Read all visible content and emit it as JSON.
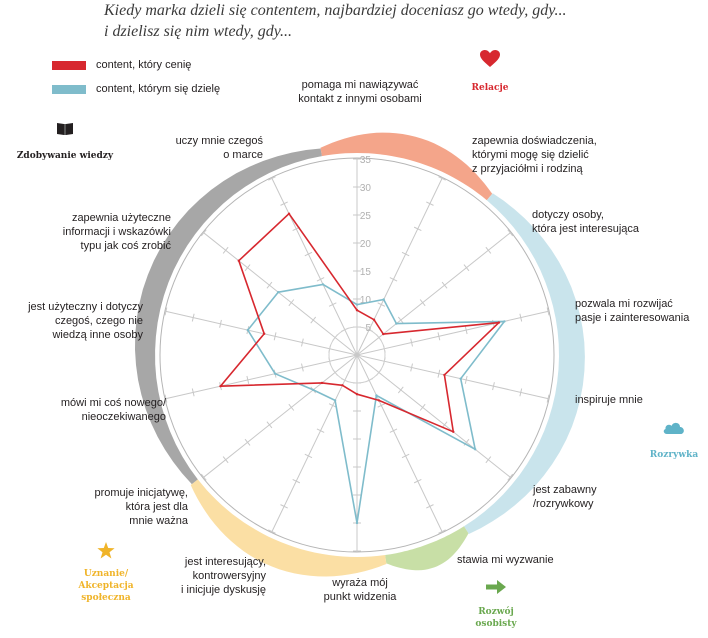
{
  "title": {
    "line1": "Kiedy marka dzieli się contentem, najbardziej doceniasz go wtedy, gdy...",
    "line2": "i dzielisz się nim wtedy, gdy..."
  },
  "legend": [
    {
      "label": "content, który cenię",
      "color": "#d7282f"
    },
    {
      "label": "content, którym się dzielę",
      "color": "#7fbccb"
    }
  ],
  "categories": {
    "relacje": {
      "label": "Relacje",
      "color": "#d7282f",
      "icon": "heart-icon"
    },
    "wiedza": {
      "label": "Zdobywanie wiedzy",
      "color": "#231f20",
      "icon": "book-icon"
    },
    "rozrywka": {
      "label": "Rozrywka",
      "color": "#5fb3c8",
      "icon": "cloud-icon"
    },
    "rozwoj": {
      "label_lines": [
        "Rozwój",
        "osobisty"
      ],
      "color": "#6aa84f",
      "icon": "arrow-right-icon"
    },
    "uznanie": {
      "label_lines": [
        "Uznanie/",
        "Akceptacja",
        "społeczna"
      ],
      "color": "#f0b429",
      "icon": "star-icon"
    }
  },
  "chart_data": {
    "type": "radar",
    "title": "Kiedy marka dzieli się contentem, najbardziej doceniasz go wtedy, gdy... i dzielisz się nim wtedy, gdy...",
    "rlim": [
      0,
      35
    ],
    "ticks": [
      5,
      10,
      15,
      20,
      25,
      30,
      35
    ],
    "axes": [
      [
        "pomaga mi nawiązywać",
        "kontakt z innymi osobami"
      ],
      [
        "zapewnia doświadczenia,",
        "którymi mogę się dzielić",
        "z przyjaciółmi i rodziną"
      ],
      [
        "dotyczy osoby,",
        "która jest interesująca"
      ],
      [
        "pozwala mi rozwijać",
        "pasje i zainteresowania"
      ],
      [
        "inspiruje mnie"
      ],
      [
        "jest zabawny",
        "/rozrywkowy"
      ],
      [
        "stawia mi wyzwanie"
      ],
      [
        "wyraża mój",
        "punkt widzenia"
      ],
      [
        "jest interesujący,",
        "kontrowersyjny",
        "i inicjuje dyskusję"
      ],
      [
        "promuje inicjatywę,",
        "która jest dla",
        "mnie ważna"
      ],
      [
        "mówi mi coś nowego/",
        "nieoczekiwanego"
      ],
      [
        "jest użyteczny i dotyczy",
        "czegoś, czego nie",
        "wiedzą inne osoby"
      ],
      [
        "zapewnia użyteczne",
        "informacji i wskazówki",
        "typu jak coś zrobić"
      ],
      [
        "uczy mnie czegoś",
        "o marce"
      ]
    ],
    "series": [
      {
        "name": "content, który cenię",
        "color": "#d7282f",
        "values": [
          8,
          7,
          6,
          26,
          16,
          22,
          9,
          7,
          6,
          8,
          25,
          17,
          27,
          28
        ]
      },
      {
        "name": "content, którym się dzielę",
        "color": "#7fbccb",
        "values": [
          9,
          11,
          9,
          27,
          19,
          27,
          8,
          30,
          9,
          10,
          15,
          20,
          18,
          14
        ]
      }
    ],
    "category_bands": [
      {
        "category": "relacje",
        "color": "#f4a58a"
      },
      {
        "category": "rozrywka",
        "color": "#c9e4ec"
      },
      {
        "category": "rozwoj",
        "color": "#c8dfa6"
      },
      {
        "category": "uznanie",
        "color": "#fbdfa4"
      },
      {
        "category": "wiedza",
        "color": "#a7a7a7"
      }
    ]
  }
}
